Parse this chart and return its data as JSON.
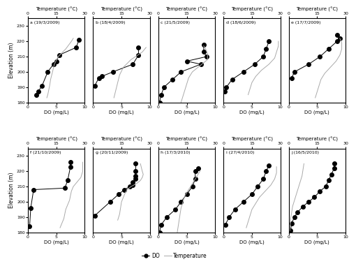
{
  "subplots": [
    {
      "label": "a (19/3/2009)",
      "do_elevation": [
        185,
        187,
        191,
        200,
        205,
        207,
        211,
        216,
        221
      ],
      "do_values": [
        1.5,
        1.8,
        2.5,
        3.5,
        4.5,
        5.0,
        5.5,
        8.5,
        9.0
      ],
      "temp_elevation": [
        183,
        185,
        188,
        191,
        195,
        200,
        205,
        210,
        215,
        220,
        222
      ],
      "temp_values": [
        10,
        10.5,
        11,
        11.5,
        12,
        13,
        14,
        16,
        20,
        23,
        24
      ]
    },
    {
      "label": "b (18/4/2009)",
      "do_elevation": [
        191,
        196,
        197,
        200,
        205,
        211,
        216
      ],
      "do_values": [
        0.3,
        1.0,
        1.5,
        3.5,
        7.0,
        8.0,
        8.0
      ],
      "temp_elevation": [
        183,
        188,
        193,
        198,
        203,
        208,
        213,
        216
      ],
      "temp_values": [
        11,
        12,
        13,
        14,
        16,
        20,
        26,
        28
      ]
    },
    {
      "label": "c (21/5/2009)",
      "do_elevation": [
        180,
        185,
        190,
        195,
        200,
        205,
        207,
        210,
        213,
        218
      ],
      "do_values": [
        0.2,
        0.5,
        1.0,
        2.5,
        4.0,
        7.5,
        5.0,
        8.5,
        8.0,
        8.0
      ],
      "temp_elevation": [
        180,
        184,
        188,
        192,
        196,
        200,
        204,
        208,
        212,
        215,
        217
      ],
      "temp_values": [
        12,
        13,
        14,
        15,
        16,
        18,
        22,
        26,
        26,
        25,
        24
      ]
    },
    {
      "label": "d (18/6/2009)",
      "do_elevation": [
        187,
        190,
        195,
        200,
        205,
        210,
        215,
        220
      ],
      "do_values": [
        0.2,
        0.5,
        1.5,
        3.5,
        5.5,
        7.0,
        7.5,
        8.0
      ],
      "temp_elevation": [
        185,
        189,
        193,
        197,
        201,
        205,
        209,
        213,
        217,
        220
      ],
      "temp_values": [
        13,
        14,
        15,
        17,
        20,
        24,
        27,
        28,
        29,
        29
      ]
    },
    {
      "label": "e (17/7/2009)",
      "do_elevation": [
        196,
        200,
        205,
        210,
        215,
        220,
        222,
        224
      ],
      "do_values": [
        0.5,
        1.0,
        3.5,
        5.5,
        7.0,
        8.5,
        9.0,
        8.5
      ],
      "temp_elevation": [
        183,
        187,
        191,
        195,
        199,
        203,
        207,
        211,
        215,
        219,
        222
      ],
      "temp_values": [
        14,
        15,
        16,
        17,
        19,
        22,
        25,
        27,
        28,
        28,
        27
      ]
    },
    {
      "label": "f (21/10/2009)",
      "do_elevation": [
        184,
        196,
        208,
        209,
        214,
        223,
        226
      ],
      "do_values": [
        0.3,
        0.5,
        1.0,
        6.5,
        7.0,
        7.5,
        7.5
      ],
      "temp_elevation": [
        183,
        186,
        189,
        192,
        195,
        198,
        201,
        204,
        207,
        210,
        213,
        216,
        220,
        226
      ],
      "temp_values": [
        17,
        18,
        19,
        19.5,
        20,
        21,
        22,
        22.5,
        23,
        24,
        26,
        28,
        29,
        29
      ]
    },
    {
      "label": "g (20/11/2009)",
      "do_elevation": [
        191,
        200,
        205,
        208,
        210,
        211,
        213,
        215,
        217,
        220,
        225
      ],
      "do_values": [
        0.3,
        3.0,
        4.5,
        5.5,
        6.5,
        7.0,
        7.0,
        7.5,
        7.5,
        7.5,
        7.5
      ],
      "temp_elevation": [
        188,
        192,
        196,
        200,
        203,
        206,
        208,
        210,
        212,
        214,
        216,
        218,
        220,
        225
      ],
      "temp_values": [
        13,
        14,
        14.5,
        15,
        16,
        17,
        18,
        20,
        23,
        25,
        26,
        26.5,
        26,
        25
      ]
    },
    {
      "label": "h (17/3/2010)",
      "do_elevation": [
        180,
        185,
        190,
        195,
        200,
        205,
        210,
        215,
        220,
        222
      ],
      "do_values": [
        0.2,
        0.5,
        1.5,
        3.0,
        4.0,
        5.0,
        6.0,
        6.5,
        6.5,
        7.0
      ],
      "temp_elevation": [
        180,
        184,
        188,
        192,
        196,
        200,
        204,
        208,
        212,
        216,
        220
      ],
      "temp_values": [
        10,
        10.5,
        11,
        11.5,
        12,
        13,
        14,
        16,
        18,
        20,
        22
      ]
    },
    {
      "label": "i (27/4/2010)",
      "do_elevation": [
        185,
        190,
        195,
        200,
        205,
        210,
        215,
        220,
        224
      ],
      "do_values": [
        0.3,
        1.0,
        2.0,
        3.5,
        5.0,
        6.0,
        7.0,
        7.5,
        8.0
      ],
      "temp_elevation": [
        183,
        187,
        191,
        195,
        199,
        203,
        207,
        211,
        215,
        219,
        223
      ],
      "temp_values": [
        12,
        13,
        14,
        15,
        17,
        19,
        22,
        25,
        27,
        28,
        28
      ]
    },
    {
      "label": "j (16/5/2010)",
      "do_elevation": [
        181,
        186,
        190,
        193,
        197,
        200,
        203,
        207,
        210,
        214,
        218,
        222,
        225
      ],
      "do_values": [
        0.3,
        0.5,
        1.0,
        1.5,
        2.5,
        3.5,
        4.5,
        5.5,
        6.5,
        7.0,
        7.5,
        8.0,
        8.0
      ],
      "temp_elevation": [
        181,
        185,
        189,
        193,
        197,
        201,
        205,
        209,
        213,
        217,
        221,
        225
      ],
      "temp_values": [
        0.5,
        0.8,
        1.0,
        1.5,
        2.0,
        3.0,
        4.0,
        5.0,
        6.0,
        7.0,
        7.5,
        8.0
      ]
    }
  ],
  "ylim": [
    180,
    235
  ],
  "yticks": [
    180,
    190,
    200,
    210,
    220,
    230
  ],
  "do_xlim": [
    0,
    10
  ],
  "do_xticks": [
    0,
    5,
    10
  ],
  "temp_xlim": [
    0,
    30
  ],
  "temp_xticks": [
    0,
    15,
    30
  ],
  "ylabel": "Elevation (m)",
  "xlabel_do": "DO (mg/L)",
  "xlabel_temp": "Temperature (°C)",
  "do_color": "#000000",
  "temp_color": "#aaaaaa",
  "marker": "o",
  "markersize": 4,
  "legend_do": "DO",
  "legend_temp": "Temperature"
}
